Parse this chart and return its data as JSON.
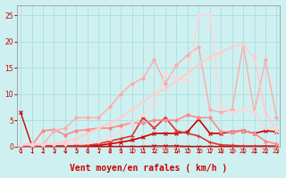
{
  "x": [
    0,
    1,
    2,
    3,
    4,
    5,
    6,
    7,
    8,
    9,
    10,
    11,
    12,
    13,
    14,
    15,
    16,
    17,
    18,
    19,
    20,
    21,
    22,
    23
  ],
  "series": [
    {
      "y": [
        6.5,
        0.2,
        0.1,
        0.1,
        0.0,
        0.0,
        0.0,
        0.0,
        0.0,
        0.0,
        0.0,
        0.0,
        0.1,
        0.1,
        0.1,
        0.0,
        0.0,
        0.0,
        0.0,
        0.0,
        0.0,
        0.0,
        0.0,
        0.0
      ],
      "color": "#cc0000",
      "lw": 1.0,
      "marker": "x",
      "ms": 3
    },
    {
      "y": [
        0.1,
        0.1,
        0.1,
        0.1,
        0.1,
        0.1,
        0.1,
        0.2,
        0.5,
        0.8,
        1.2,
        1.8,
        2.5,
        2.5,
        2.5,
        2.8,
        5.2,
        2.5,
        2.5,
        2.8,
        3.0,
        2.5,
        3.0,
        2.8
      ],
      "color": "#cc0000",
      "lw": 1.2,
      "marker": "x",
      "ms": 3
    },
    {
      "y": [
        0.1,
        0.1,
        0.1,
        0.1,
        0.1,
        0.1,
        0.2,
        0.5,
        1.0,
        1.5,
        2.0,
        5.5,
        3.5,
        5.5,
        3.0,
        2.5,
        2.0,
        0.8,
        0.3,
        0.2,
        0.1,
        0.1,
        0.1,
        0.1
      ],
      "color": "#dd3333",
      "lw": 1.2,
      "marker": "+",
      "ms": 3.5
    },
    {
      "y": [
        0.3,
        0.2,
        3.0,
        3.2,
        2.2,
        3.0,
        3.2,
        3.5,
        3.5,
        4.0,
        4.5,
        4.5,
        5.0,
        5.0,
        5.0,
        6.0,
        5.5,
        5.5,
        2.8,
        2.8,
        3.0,
        2.5,
        1.0,
        0.5
      ],
      "color": "#ff8888",
      "lw": 1.2,
      "marker": "D",
      "ms": 2
    },
    {
      "y": [
        0.3,
        0.3,
        0.3,
        3.0,
        3.5,
        5.5,
        5.5,
        5.5,
        7.5,
        10.0,
        12.0,
        13.0,
        16.5,
        12.0,
        15.5,
        17.5,
        19.0,
        7.0,
        6.5,
        7.0,
        19.5,
        6.5,
        16.5,
        5.5
      ],
      "color": "#ffaaaa",
      "lw": 1.0,
      "marker": "D",
      "ms": 2
    },
    {
      "y": [
        0.5,
        0.5,
        0.5,
        0.5,
        1.0,
        1.5,
        2.5,
        3.5,
        4.5,
        5.5,
        7.0,
        8.5,
        10.0,
        11.0,
        12.5,
        14.0,
        15.5,
        17.0,
        18.0,
        19.0,
        19.5,
        17.0,
        6.5,
        3.0
      ],
      "color": "#ffcccc",
      "lw": 1.2,
      "marker": "D",
      "ms": 2
    },
    {
      "y": [
        0.3,
        0.3,
        0.3,
        0.5,
        0.5,
        0.8,
        0.8,
        1.0,
        1.5,
        3.0,
        4.5,
        6.0,
        8.0,
        14.0,
        13.0,
        12.5,
        25.0,
        25.0,
        7.5,
        6.5,
        7.0,
        6.5,
        3.5,
        3.5
      ],
      "color": "#ffd5d5",
      "lw": 1.0,
      "marker": "D",
      "ms": 2
    }
  ],
  "xlabel": "Vent moyen/en rafales ( km/h )",
  "xlim": [
    0,
    23
  ],
  "ylim": [
    0,
    27
  ],
  "yticks": [
    0,
    5,
    10,
    15,
    20,
    25
  ],
  "xticks": [
    0,
    1,
    2,
    3,
    4,
    5,
    6,
    7,
    8,
    9,
    10,
    11,
    12,
    13,
    14,
    15,
    16,
    17,
    18,
    19,
    20,
    21,
    22,
    23
  ],
  "bg_color": "#cff0f0",
  "grid_color": "#aadddd",
  "tick_color": "#cc0000",
  "label_color": "#cc0000",
  "spine_color": "#999999"
}
